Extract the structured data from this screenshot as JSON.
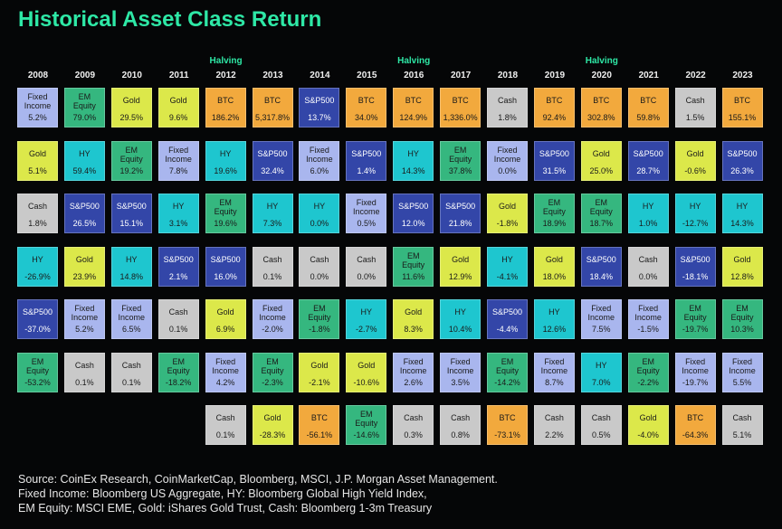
{
  "title": "Historical Asset Class Return",
  "colors": {
    "background": "#050607",
    "title": "#2ee8a6",
    "halving": "#2ee8a6",
    "Fixed Income": "#a9b6ee",
    "EM Equity": "#35b77f",
    "Gold": "#dce84a",
    "BTC": "#f2a93d",
    "S&P500": "#3346a8",
    "HY": "#1ec6cf",
    "Cash": "#c9c9c9"
  },
  "source_lines": [
    "Source: CoinEx Research, CoinMarketCap, Bloomberg, MSCI, J.P. Morgan Asset Management.",
    "Fixed Income: Bloomberg US Aggregate, HY: Bloomberg Global High Yield Index,",
    "EM Equity: MSCI EME, Gold: iShares Gold Trust, Cash: Bloomberg 1-3m Treasury"
  ],
  "chart_data": {
    "type": "table",
    "years": [
      "2008",
      "2009",
      "2010",
      "2011",
      "2012",
      "2013",
      "2014",
      "2015",
      "2016",
      "2017",
      "2018",
      "2019",
      "2020",
      "2021",
      "2022",
      "2023"
    ],
    "halving_label": "Halving",
    "halving_years": [
      "2012",
      "2016",
      "2020"
    ],
    "columns": [
      [
        [
          "Fixed Income",
          "5.2%"
        ],
        [
          "Gold",
          "5.1%"
        ],
        [
          "Cash",
          "1.8%"
        ],
        [
          "HY",
          "-26.9%"
        ],
        [
          "S&P500",
          "-37.0%"
        ],
        [
          "EM Equity",
          "-53.2%"
        ]
      ],
      [
        [
          "EM Equity",
          "79.0%"
        ],
        [
          "HY",
          "59.4%"
        ],
        [
          "S&P500",
          "26.5%"
        ],
        [
          "Gold",
          "23.9%"
        ],
        [
          "Fixed Income",
          "5.2%"
        ],
        [
          "Cash",
          "0.1%"
        ]
      ],
      [
        [
          "Gold",
          "29.5%"
        ],
        [
          "EM Equity",
          "19.2%"
        ],
        [
          "S&P500",
          "15.1%"
        ],
        [
          "HY",
          "14.8%"
        ],
        [
          "Fixed Income",
          "6.5%"
        ],
        [
          "Cash",
          "0.1%"
        ]
      ],
      [
        [
          "Gold",
          "9.6%"
        ],
        [
          "Fixed Income",
          "7.8%"
        ],
        [
          "HY",
          "3.1%"
        ],
        [
          "S&P500",
          "2.1%"
        ],
        [
          "Cash",
          "0.1%"
        ],
        [
          "EM Equity",
          "-18.2%"
        ]
      ],
      [
        [
          "BTC",
          "186.2%"
        ],
        [
          "HY",
          "19.6%"
        ],
        [
          "EM Equity",
          "19.6%"
        ],
        [
          "S&P500",
          "16.0%"
        ],
        [
          "Gold",
          "6.9%"
        ],
        [
          "Fixed Income",
          "4.2%"
        ],
        [
          "Cash",
          "0.1%"
        ]
      ],
      [
        [
          "BTC",
          "5,317.8%"
        ],
        [
          "S&P500",
          "32.4%"
        ],
        [
          "HY",
          "7.3%"
        ],
        [
          "Cash",
          "0.1%"
        ],
        [
          "Fixed Income",
          "-2.0%"
        ],
        [
          "EM Equity",
          "-2.3%"
        ],
        [
          "Gold",
          "-28.3%"
        ]
      ],
      [
        [
          "S&P500",
          "13.7%"
        ],
        [
          "Fixed Income",
          "6.0%"
        ],
        [
          "HY",
          "0.0%"
        ],
        [
          "Cash",
          "0.0%"
        ],
        [
          "EM Equity",
          "-1.8%"
        ],
        [
          "Gold",
          "-2.1%"
        ],
        [
          "BTC",
          "-56.1%"
        ]
      ],
      [
        [
          "BTC",
          "34.0%"
        ],
        [
          "S&P500",
          "1.4%"
        ],
        [
          "Fixed Income",
          "0.5%"
        ],
        [
          "Cash",
          "0.0%"
        ],
        [
          "HY",
          "-2.7%"
        ],
        [
          "Gold",
          "-10.6%"
        ],
        [
          "EM Equity",
          "-14.6%"
        ]
      ],
      [
        [
          "BTC",
          "124.9%"
        ],
        [
          "HY",
          "14.3%"
        ],
        [
          "S&P500",
          "12.0%"
        ],
        [
          "EM Equity",
          "11.6%"
        ],
        [
          "Gold",
          "8.3%"
        ],
        [
          "Fixed Income",
          "2.6%"
        ],
        [
          "Cash",
          "0.3%"
        ]
      ],
      [
        [
          "BTC",
          "1,336.0%"
        ],
        [
          "EM Equity",
          "37.8%"
        ],
        [
          "S&P500",
          "21.8%"
        ],
        [
          "Gold",
          "12.9%"
        ],
        [
          "HY",
          "10.4%"
        ],
        [
          "Fixed Income",
          "3.5%"
        ],
        [
          "Cash",
          "0.8%"
        ]
      ],
      [
        [
          "Cash",
          "1.8%"
        ],
        [
          "Fixed Income",
          "0.0%"
        ],
        [
          "Gold",
          "-1.8%"
        ],
        [
          "HY",
          "-4.1%"
        ],
        [
          "S&P500",
          "-4.4%"
        ],
        [
          "EM Equity",
          "-14.2%"
        ],
        [
          "BTC",
          "-73.1%"
        ]
      ],
      [
        [
          "BTC",
          "92.4%"
        ],
        [
          "S&P500",
          "31.5%"
        ],
        [
          "EM Equity",
          "18.9%"
        ],
        [
          "Gold",
          "18.0%"
        ],
        [
          "HY",
          "12.6%"
        ],
        [
          "Fixed Income",
          "8.7%"
        ],
        [
          "Cash",
          "2.2%"
        ]
      ],
      [
        [
          "BTC",
          "302.8%"
        ],
        [
          "Gold",
          "25.0%"
        ],
        [
          "EM Equity",
          "18.7%"
        ],
        [
          "S&P500",
          "18.4%"
        ],
        [
          "Fixed Income",
          "7.5%"
        ],
        [
          "HY",
          "7.0%"
        ],
        [
          "Cash",
          "0.5%"
        ]
      ],
      [
        [
          "BTC",
          "59.8%"
        ],
        [
          "S&P500",
          "28.7%"
        ],
        [
          "HY",
          "1.0%"
        ],
        [
          "Cash",
          "0.0%"
        ],
        [
          "Fixed Income",
          "-1.5%"
        ],
        [
          "EM Equity",
          "-2.2%"
        ],
        [
          "Gold",
          "-4.0%"
        ]
      ],
      [
        [
          "Cash",
          "1.5%"
        ],
        [
          "Gold",
          "-0.6%"
        ],
        [
          "HY",
          "-12.7%"
        ],
        [
          "S&P500",
          "-18.1%"
        ],
        [
          "EM Equity",
          "-19.7%"
        ],
        [
          "Fixed Income",
          "-19.7%"
        ],
        [
          "BTC",
          "-64.3%"
        ]
      ],
      [
        [
          "BTC",
          "155.1%"
        ],
        [
          "S&P500",
          "26.3%"
        ],
        [
          "HY",
          "14.3%"
        ],
        [
          "Gold",
          "12.8%"
        ],
        [
          "EM Equity",
          "10.3%"
        ],
        [
          "Fixed Income",
          "5.5%"
        ],
        [
          "Cash",
          "5.1%"
        ]
      ]
    ]
  }
}
